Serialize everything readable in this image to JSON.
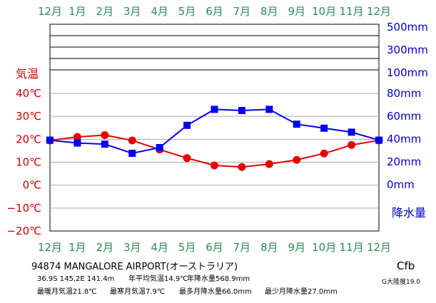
{
  "station": {
    "title": "94874  MANGALORE AIRPORT(オーストラリア)",
    "coords": "36.9S  145.2E  141.4m",
    "annual_temp": "年平均気温14.9℃",
    "annual_prec": "年降水量568.9mm",
    "warmest": "最暖月気温21.8℃",
    "coldest": "最寒月気温7.9℃",
    "wettest": "最多月降水量66.0mm",
    "driest": "最少月降水量27.0mm",
    "climate_class": "Cfb",
    "continentality": "G大陸度19.0"
  },
  "chart_data": {
    "type": "line",
    "x": [
      "12月",
      "1月",
      "2月",
      "3月",
      "4月",
      "5月",
      "6月",
      "7月",
      "8月",
      "9月",
      "10月",
      "11月",
      "12月"
    ],
    "y_left": {
      "label": "気温",
      "unit": "℃",
      "ticks": [
        "40℃",
        "30℃",
        "20℃",
        "10℃",
        "0℃",
        "−10℃",
        "−20℃"
      ],
      "range": [
        -20,
        40
      ]
    },
    "y_right": {
      "label": "降水量",
      "ticks": [
        "500mm",
        "300mm",
        "100mm",
        "80mm",
        "60mm",
        "40mm",
        "20mm",
        "0mm"
      ],
      "range": [
        0,
        80
      ],
      "scale_note": "linear 0–80 mm, compressed band 100–500 mm above"
    },
    "series": [
      {
        "color": "#e60000",
        "marker": "circle",
        "values": [
          19.5,
          21.0,
          21.8,
          19.5,
          15.5,
          11.8,
          8.6,
          7.9,
          9.2,
          11.0,
          13.8,
          17.5,
          19.5
        ]
      },
      {
        "color": "#0000ee",
        "marker": "square",
        "values": [
          39.0,
          36.5,
          35.5,
          27.5,
          32.5,
          52.0,
          66.0,
          65.0,
          66.0,
          53.0,
          49.5,
          46.0,
          39.0
        ]
      }
    ],
    "grid": true
  }
}
